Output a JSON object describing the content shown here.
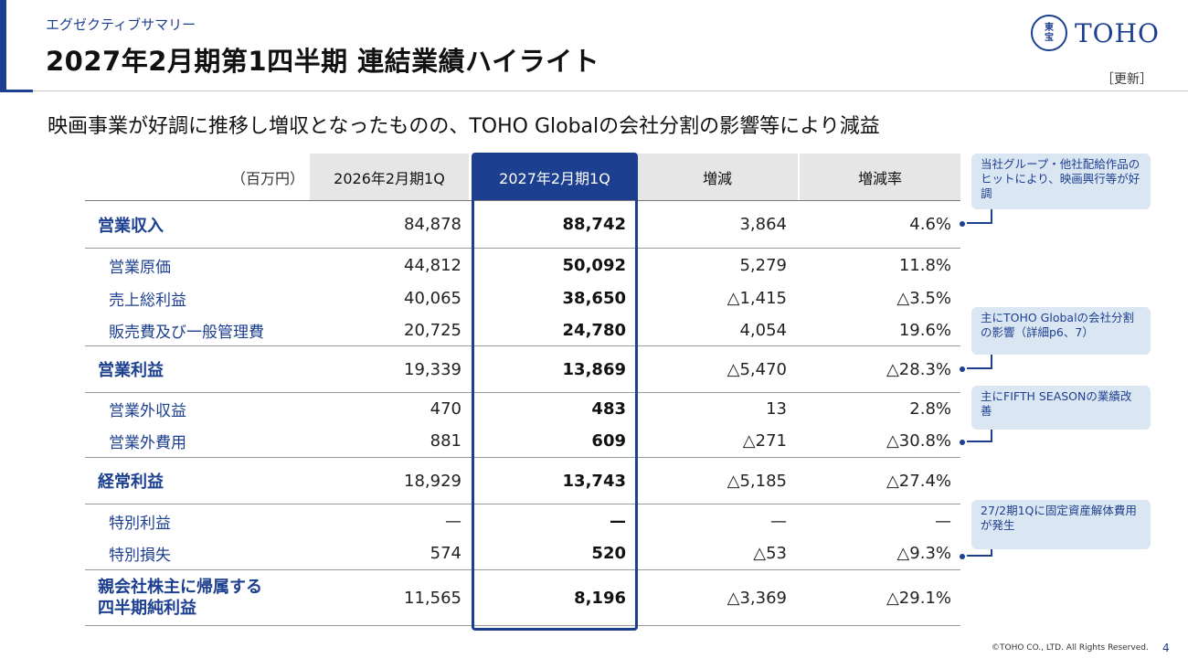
{
  "header": {
    "subtitle": "エグゼクティブサマリー",
    "title": "2027年2月期第1四半期 連結業績ハイライト",
    "logo_emblem_top": "東",
    "logo_emblem_bottom": "宝",
    "logo_text": "TOHO",
    "update_tag": "［更新］"
  },
  "headline": "映画事業が好調に推移し増収となったものの、TOHO Globalの会社分割の影響等により減益",
  "table": {
    "unit_label": "（百万円）",
    "col_prev": "2026年2月期1Q",
    "col_cur": "2027年2月期1Q",
    "col_diff": "増減",
    "col_rate": "増減率",
    "rows": [
      {
        "label": "営業収入",
        "prev": "84,878",
        "cur": "88,742",
        "diff": "3,864",
        "rate": "4.6%"
      },
      {
        "label": "営業原価",
        "prev": "44,812",
        "cur": "50,092",
        "diff": "5,279",
        "rate": "11.8%"
      },
      {
        "label": "売上総利益",
        "prev": "40,065",
        "cur": "38,650",
        "diff": "△1,415",
        "rate": "△3.5%"
      },
      {
        "label": "販売費及び一般管理費",
        "prev": "20,725",
        "cur": "24,780",
        "diff": "4,054",
        "rate": "19.6%"
      },
      {
        "label": "営業利益",
        "prev": "19,339",
        "cur": "13,869",
        "diff": "△5,470",
        "rate": "△28.3%"
      },
      {
        "label": "営業外収益",
        "prev": "470",
        "cur": "483",
        "diff": "13",
        "rate": "2.8%"
      },
      {
        "label": "営業外費用",
        "prev": "881",
        "cur": "609",
        "diff": "△271",
        "rate": "△30.8%"
      },
      {
        "label": "経常利益",
        "prev": "18,929",
        "cur": "13,743",
        "diff": "△5,185",
        "rate": "△27.4%"
      },
      {
        "label": "特別利益",
        "prev": "—",
        "cur": "—",
        "diff": "—",
        "rate": "—"
      },
      {
        "label": "特別損失",
        "prev": "574",
        "cur": "520",
        "diff": "△53",
        "rate": "△9.3%"
      },
      {
        "label_line1": "親会社株主に帰属する",
        "label_line2": "四半期純利益",
        "prev": "11,565",
        "cur": "8,196",
        "diff": "△3,369",
        "rate": "△29.1%"
      }
    ]
  },
  "notes": [
    "当社グループ・他社配給作品のヒットにより、映画興行等が好調",
    "主にTOHO Globalの会社分割の影響（詳細p6、7）",
    "主にFIFTH SEASONの業績改善",
    "27/2期1Qに固定資産解体費用が発生"
  ],
  "footer": {
    "copyright": "©TOHO CO., LTD. All Rights Reserved.",
    "page": "4"
  },
  "colors": {
    "brand_navy": "#1d3f8f",
    "header_gray": "#e6e6e6",
    "note_bg": "#dbe6f3"
  }
}
